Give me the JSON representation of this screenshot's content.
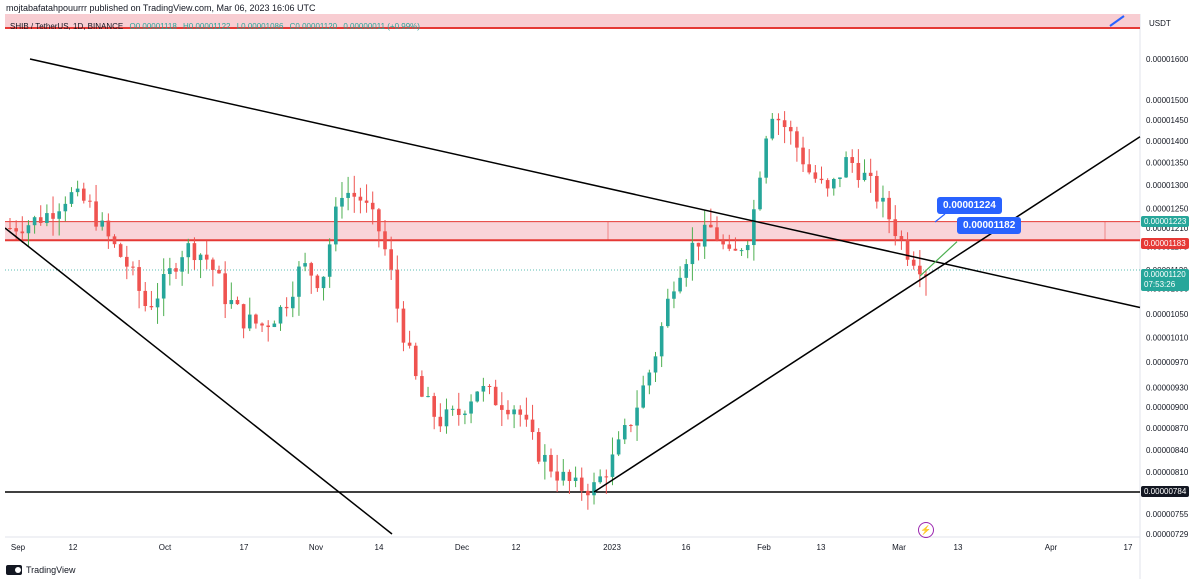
{
  "header": {
    "publisher_line": "mojtabafatahpouurrr published on TradingView.com, Mar 06, 2023 16:06 UTC"
  },
  "symbol_bar": {
    "symbol": "SHIB / TetherUS, 1D, BINANCE",
    "open": "O0.00001118",
    "high": "H0.00001122",
    "low": "L0.00001086",
    "close": "C0.00001120",
    "change": "0.00000011 (+0.99%)"
  },
  "price_axis": {
    "currency": "USDT",
    "ticks": [
      "0.00001600",
      "0.00001500",
      "0.00001450",
      "0.00001400",
      "0.00001350",
      "0.00001300",
      "0.00001250",
      "0.00001210",
      "0.00001170",
      "0.00001120",
      "0.00001090",
      "0.00001050",
      "0.00001010",
      "0.00000970",
      "0.00000930",
      "0.00000900",
      "0.00000870",
      "0.00000840",
      "0.00000810",
      "0.00000784",
      "0.00000755",
      "0.00000729"
    ],
    "tags": {
      "upper_zone": "0.00001223",
      "lower_zone": "0.00001183",
      "current_price": "0.00001120",
      "countdown": "07:53:26",
      "support": "0.00000784"
    }
  },
  "time_axis": {
    "labels": [
      "Sep",
      "12",
      "Oct",
      "17",
      "Nov",
      "14",
      "Dec",
      "12",
      "2023",
      "16",
      "Feb",
      "13",
      "Mar",
      "13",
      "Apr",
      "17"
    ]
  },
  "callouts": {
    "upper": "0.00001224",
    "lower": "0.00001182"
  },
  "footer": {
    "brand": "TradingView"
  },
  "colors": {
    "up": "#26a69a",
    "up_wick": "#4caf50",
    "down": "#ef5350",
    "zone_fill": "#f8cdd2",
    "zone_line": "#e53935",
    "trend_line": "#000000",
    "callout_bg": "#2962ff"
  },
  "chart_data": {
    "type": "candlestick",
    "title": "SHIB / TetherUS, 1D, BINANCE",
    "x_labels": [
      "Sep",
      "12",
      "Oct",
      "17",
      "Nov",
      "14",
      "Dec",
      "12",
      "2023",
      "16",
      "Feb",
      "13",
      "Mar",
      "13",
      "Apr",
      "17"
    ],
    "ylim": [
      7.2e-06,
      1.65e-05
    ],
    "y_scale": "log",
    "horizontal_levels": [
      1.223e-05,
      1.183e-05,
      7.84e-06
    ],
    "closes_approx": [
      1.21e-05,
      1.22e-05,
      1.24e-05,
      1.28e-05,
      1.26e-05,
      1.19e-05,
      1.13e-05,
      1.06e-05,
      1.1e-05,
      1.17e-05,
      1.15e-05,
      1.08e-05,
      1.04e-05,
      1.03e-05,
      1.06e-05,
      1.13e-05,
      1.1e-05,
      1.29e-05,
      1.27e-05,
      1.2e-05,
      1.04e-05,
      9.2e-06,
      8.8e-06,
      8.9e-06,
      9.3e-06,
      9.1e-06,
      9e-06,
      8.4e-06,
      8.1e-06,
      7.9e-06,
      7.9e-06,
      8.3e-06,
      8.9e-06,
      9.7e-06,
      1.1e-05,
      1.17e-05,
      1.21e-05,
      1.14e-05,
      1.2e-05,
      1.48e-05,
      1.42e-05,
      1.33e-05,
      1.28e-05,
      1.36e-05,
      1.31e-05,
      1.24e-05,
      1.16e-05,
      1.12e-05
    ]
  }
}
